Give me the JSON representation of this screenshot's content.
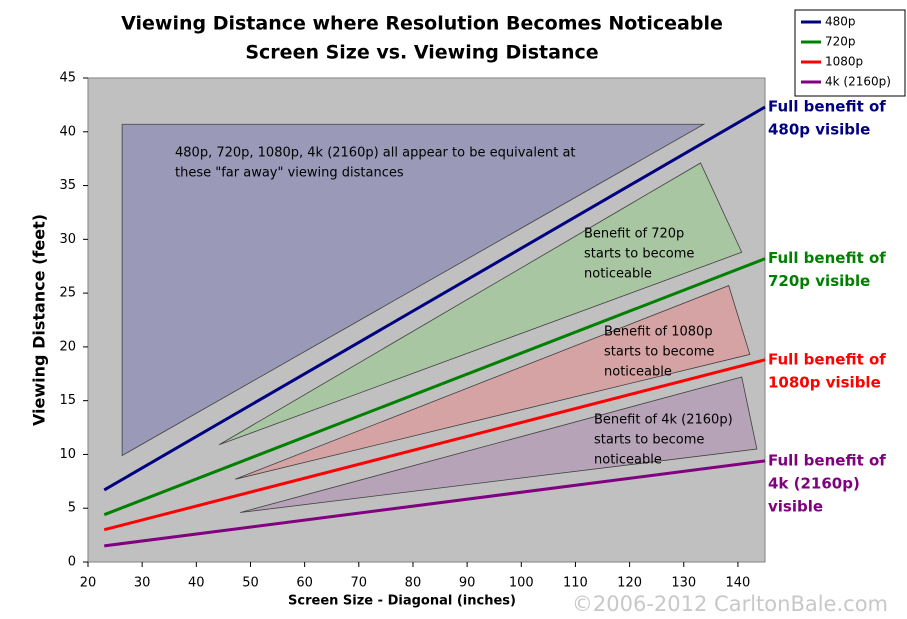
{
  "chart_data": {
    "type": "line",
    "title": "Viewing Distance where Resolution Becomes Noticeable",
    "subtitle": "Screen Size vs. Viewing Distance",
    "x_label": "Screen Size - Diagonal (inches)",
    "y_label": "Viewing Distance (feet)",
    "xlim": [
      20,
      145
    ],
    "ylim": [
      0,
      45
    ],
    "xticks": [
      20,
      30,
      40,
      50,
      60,
      70,
      80,
      90,
      100,
      110,
      120,
      130,
      140
    ],
    "yticks": [
      0,
      5,
      10,
      15,
      20,
      25,
      30,
      35,
      40,
      45
    ],
    "grid": false,
    "legend": "top-right",
    "x": [
      23,
      145
    ],
    "series": [
      {
        "name": "480p",
        "color": "#000080",
        "values": [
          6.7,
          42.3
        ],
        "end_label": [
          "Full benefit of",
          "480p visible"
        ]
      },
      {
        "name": "720p",
        "color": "#008000",
        "values": [
          4.4,
          28.2
        ],
        "end_label": [
          "Full benefit of",
          "720p visible"
        ]
      },
      {
        "name": "1080p",
        "color": "#ff0000",
        "values": [
          3.0,
          18.8
        ],
        "end_label": [
          "Full benefit of",
          "1080p visible"
        ]
      },
      {
        "name": "4k (2160p)",
        "color": "#800080",
        "values": [
          1.5,
          9.4
        ],
        "end_label": [
          "Full benefit of",
          "4k (2160p)",
          "visible"
        ]
      }
    ],
    "regions": [
      {
        "color": "#9a9ab8",
        "x": [
          26.3,
          133.7,
          26.3
        ],
        "y": [
          40.7,
          40.7,
          9.9
        ],
        "label": [
          "480p, 720p, 1080p, 4k (2160p) all appear to be equivalent at",
          "these \"far away\" viewing distances"
        ]
      },
      {
        "color": "#a9c6a2",
        "x": [
          44.2,
          133.1,
          140.7
        ],
        "y": [
          10.9,
          37.1,
          28.8
        ],
        "label": [
          "Benefit of 720p",
          "starts to become",
          "noticeable"
        ]
      },
      {
        "color": "#d5a3a3",
        "x": [
          47.2,
          138.3,
          142.2
        ],
        "y": [
          7.7,
          25.7,
          19.3
        ],
        "label": [
          "Benefit of 1080p",
          "starts to become",
          "noticeable"
        ]
      },
      {
        "color": "#b7a3b7",
        "x": [
          48.1,
          140.7,
          143.5
        ],
        "y": [
          4.6,
          17.2,
          10.5
        ],
        "label": [
          "Benefit of 4k (2160p)",
          "starts to become",
          "noticeable"
        ]
      }
    ],
    "copyright": "©2006-2012 CarltonBale.com"
  }
}
